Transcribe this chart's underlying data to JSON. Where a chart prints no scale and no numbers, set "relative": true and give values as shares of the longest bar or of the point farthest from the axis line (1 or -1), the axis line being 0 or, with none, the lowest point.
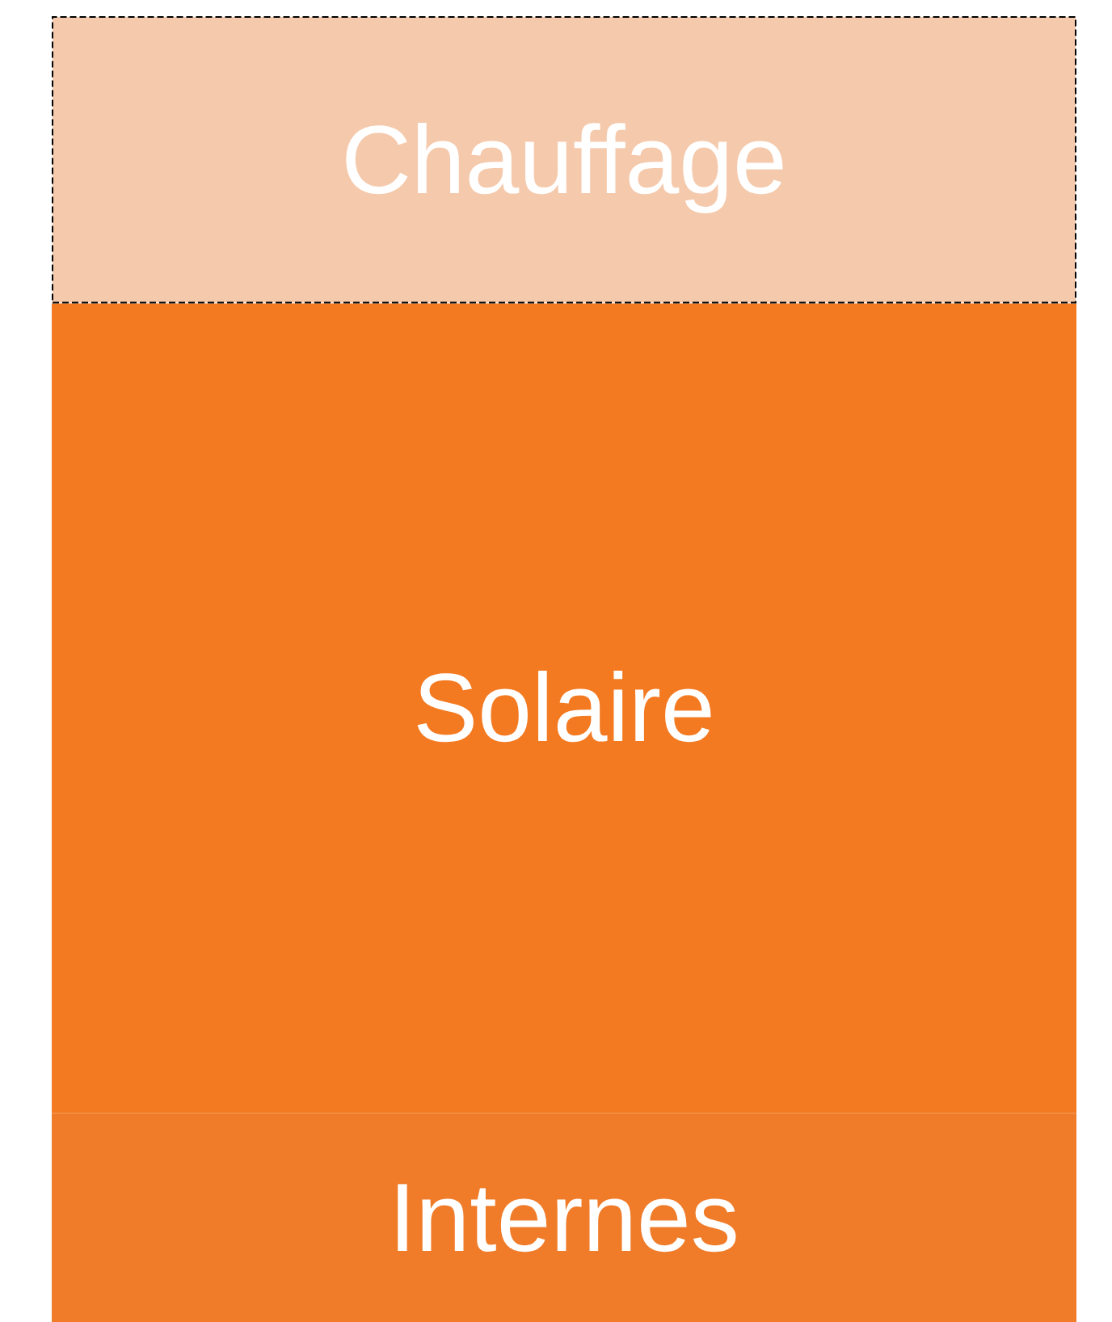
{
  "chart_data": {
    "type": "bar",
    "stacked": true,
    "relative": true,
    "categories": [
      null
    ],
    "series": [
      {
        "name": "Internes",
        "color": "#f07b28",
        "values": [
          0.16
        ]
      },
      {
        "name": "Solaire",
        "color": "#f47a22",
        "values": [
          0.62
        ]
      },
      {
        "name": "Chauffage",
        "color": "#f5c9ab",
        "values": [
          0.22
        ],
        "line_style": "dashed"
      }
    ]
  }
}
